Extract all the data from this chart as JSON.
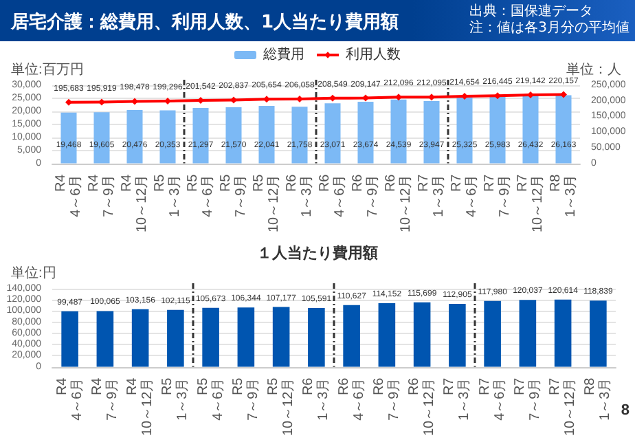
{
  "chart_data": [
    {
      "type": "bar",
      "title": "居宅介護：総費用、利用人数、1人当たり費用額",
      "annotations": [
        "出典：国保連データ",
        "注：値は各3月分の平均値"
      ],
      "ylabel": "単位:百万円",
      "y2label": "単位：人",
      "categories": [
        "R4\n4～6月",
        "R4\n7～9月",
        "R4\n10～12月",
        "R5\n1～3月",
        "R5\n4～6月",
        "R5\n7～9月",
        "R5\n10～12月",
        "R6\n1～3月",
        "R6\n4～6月",
        "R6\n7～9月",
        "R6\n10～12月",
        "R7\n1～3月",
        "R7\n4～6月",
        "R7\n7～9月",
        "R7\n10～12月",
        "R8\n1～3月"
      ],
      "series": [
        {
          "name": "総費用",
          "type": "bar",
          "color": "#7cb9f5",
          "values": [
            19468,
            19605,
            20476,
            20353,
            21297,
            21570,
            22041,
            21758,
            23071,
            23674,
            24539,
            23947,
            25325,
            25983,
            26432,
            26163
          ],
          "value_labels": [
            "19,468",
            "19,605",
            "20,476",
            "20,353",
            "21,297",
            "21,570",
            "22,041",
            "21,758",
            "23,071",
            "23,674",
            "24,539",
            "23,947",
            "25,325",
            "25,983",
            "26,432",
            "26,163"
          ]
        },
        {
          "name": "利用人数",
          "type": "line",
          "axis": "y2",
          "color": "#ff0000",
          "values": [
            195683,
            195919,
            198478,
            199296,
            201542,
            202837,
            205654,
            206058,
            208549,
            209147,
            212096,
            212095,
            214654,
            216445,
            219142,
            220157
          ],
          "value_labels": [
            "195,683",
            "195,919",
            "198,478",
            "199,296",
            "201,542",
            "202,837",
            "205,654",
            "206,058",
            "208,549",
            "209,147",
            "212,096",
            "212,095",
            "214,654",
            "216,445",
            "219,142",
            "220,157"
          ]
        }
      ],
      "ylim": [
        0,
        30000
      ],
      "yticks": [
        0,
        {
          "value": 5000,
          "label": "5,000"
        },
        {
          "value": 10000,
          "label": "10,000"
        },
        {
          "value": 15000,
          "label": "15,000"
        },
        {
          "value": 20000,
          "label": "20,000"
        },
        {
          "value": 25000,
          "label": "25,000"
        },
        {
          "value": 30000,
          "label": "30,000"
        }
      ],
      "y2lim": [
        0,
        250000
      ],
      "y2ticks": [
        0,
        {
          "value": 50000,
          "label": "50,000"
        },
        {
          "value": 100000,
          "label": "100,000"
        },
        {
          "value": 150000,
          "label": "150,000"
        },
        {
          "value": 200000,
          "label": "200,000"
        },
        {
          "value": 250000,
          "label": "250,000"
        }
      ],
      "grid": "y",
      "legend": "top",
      "marker": "diamond"
    },
    {
      "type": "bar",
      "title": "１人当たり費用額",
      "ylabel": "単位:円",
      "annotations": [
        "8"
      ],
      "categories": [
        "R4\n4～6月",
        "R4\n7～9月",
        "R4\n10～12月",
        "R5\n1～3月",
        "R5\n4～6月",
        "R5\n7～9月",
        "R5\n10～12月",
        "R6\n1～3月",
        "R6\n4～6月",
        "R6\n7～9月",
        "R6\n10～12月",
        "R7\n1～3月",
        "R7\n4～6月",
        "R7\n7～9月",
        "R7\n10～12月",
        "R8\n1～3月"
      ],
      "series": [
        {
          "color": "#0055b0",
          "values": [
            99487,
            100065,
            103156,
            102115,
            105673,
            106344,
            107177,
            105591,
            110627,
            114152,
            115699,
            112905,
            117980,
            120037,
            120614,
            118839
          ],
          "value_labels": [
            "99,487",
            "100,065",
            "103,156",
            "102,115",
            "105,673",
            "106,344",
            "107,177",
            "105,591",
            "110,627",
            "114,152",
            "115,699",
            "112,905",
            "117,980",
            "120,037",
            "120,614",
            "118,839"
          ]
        }
      ],
      "ylim": [
        0,
        140000
      ],
      "yticks": [
        0,
        {
          "value": 20000,
          "label": "20,000"
        },
        {
          "value": 40000,
          "label": "40,000"
        },
        {
          "value": 60000,
          "label": "60,000"
        },
        {
          "value": 80000,
          "label": "80,000"
        },
        {
          "value": 100000,
          "label": "100,000"
        },
        {
          "value": 120000,
          "label": "120,000"
        },
        {
          "value": 140000,
          "label": "140,000"
        }
      ],
      "grid": "y"
    }
  ]
}
